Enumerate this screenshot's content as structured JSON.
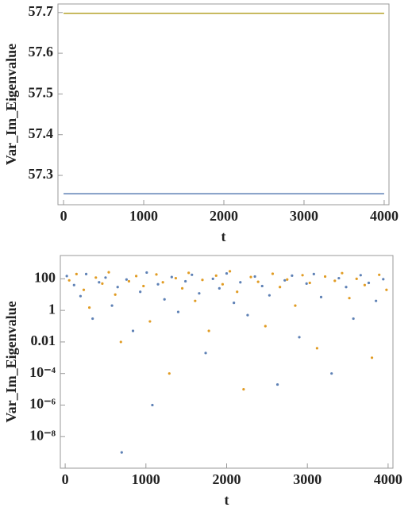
{
  "chart_data": [
    {
      "type": "line",
      "x_label": "t",
      "y_label": "Var_Im_Eigenvalue",
      "xlim": [
        -70,
        4060
      ],
      "ylim": [
        57.228,
        57.721
      ],
      "xticks": [
        0,
        1000,
        2000,
        3000,
        4000
      ],
      "yticks": [
        57.3,
        57.4,
        57.5,
        57.6,
        57.7
      ],
      "series": [
        {
          "color": "#5e81b5",
          "x": [
            0,
            4000
          ],
          "values": [
            57.255,
            57.255
          ]
        },
        {
          "color": "#b5a22a",
          "x": [
            0,
            4000
          ],
          "values": [
            57.698,
            57.698
          ]
        }
      ]
    },
    {
      "type": "scatter",
      "x_label": "t",
      "y_label": "Var_Im_Eigenvalue",
      "yscale": "log",
      "xlim": [
        -60,
        4060
      ],
      "ylim": [
        1e-10,
        3000
      ],
      "xticks": [
        0,
        1000,
        2000,
        3000,
        4000
      ],
      "yticks": [
        100,
        1,
        0.01,
        {
          "value": 0.0001,
          "label": "10⁻⁴"
        },
        {
          "value": 1e-06,
          "label": "10⁻⁶"
        },
        {
          "value": 1e-08,
          "label": "10⁻⁸"
        }
      ],
      "series": [
        {
          "color": "#5e81b5",
          "x": [
            20,
            110,
            190,
            260,
            340,
            420,
            500,
            580,
            650,
            700,
            760,
            840,
            930,
            1010,
            1080,
            1150,
            1230,
            1320,
            1400,
            1490,
            1570,
            1660,
            1740,
            1830,
            1910,
            2000,
            2090,
            2170,
            2260,
            2350,
            2440,
            2530,
            2630,
            2720,
            2810,
            2900,
            2990,
            3080,
            3170,
            3300,
            3390,
            3480,
            3570,
            3660,
            3760,
            3850,
            3940
          ],
          "values": [
            150,
            40,
            8,
            200,
            0.3,
            60,
            120,
            2,
            30,
            1e-09,
            90,
            0.05,
            15,
            250,
            1e-06,
            45,
            5,
            130,
            0.8,
            70,
            180,
            12,
            0.002,
            100,
            25,
            220,
            3,
            60,
            0.5,
            140,
            35,
            9,
            2e-05,
            80,
            160,
            0.02,
            50,
            200,
            7,
            0.0001,
            110,
            30,
            0.3,
            170,
            55,
            4,
            95
          ]
        },
        {
          "color": "#e19c24",
          "x": [
            50,
            140,
            230,
            300,
            380,
            460,
            540,
            620,
            690,
            790,
            880,
            970,
            1050,
            1130,
            1210,
            1290,
            1370,
            1450,
            1530,
            1610,
            1700,
            1780,
            1870,
            1950,
            2040,
            2130,
            2210,
            2300,
            2390,
            2480,
            2570,
            2660,
            2750,
            2850,
            2940,
            3030,
            3120,
            3220,
            3340,
            3430,
            3520,
            3610,
            3710,
            3800,
            3890,
            3980
          ],
          "values": [
            80,
            200,
            20,
            1.5,
            120,
            50,
            260,
            10,
            0.01,
            70,
            150,
            35,
            0.2,
            190,
            60,
            0.0001,
            110,
            25,
            240,
            4,
            85,
            0.05,
            160,
            45,
            300,
            15,
            1e-05,
            130,
            65,
            0.1,
            210,
            30,
            90,
            2,
            170,
            55,
            0.004,
            140,
            75,
            230,
            6,
            100,
            40,
            0.001,
            180,
            20
          ]
        }
      ]
    }
  ]
}
